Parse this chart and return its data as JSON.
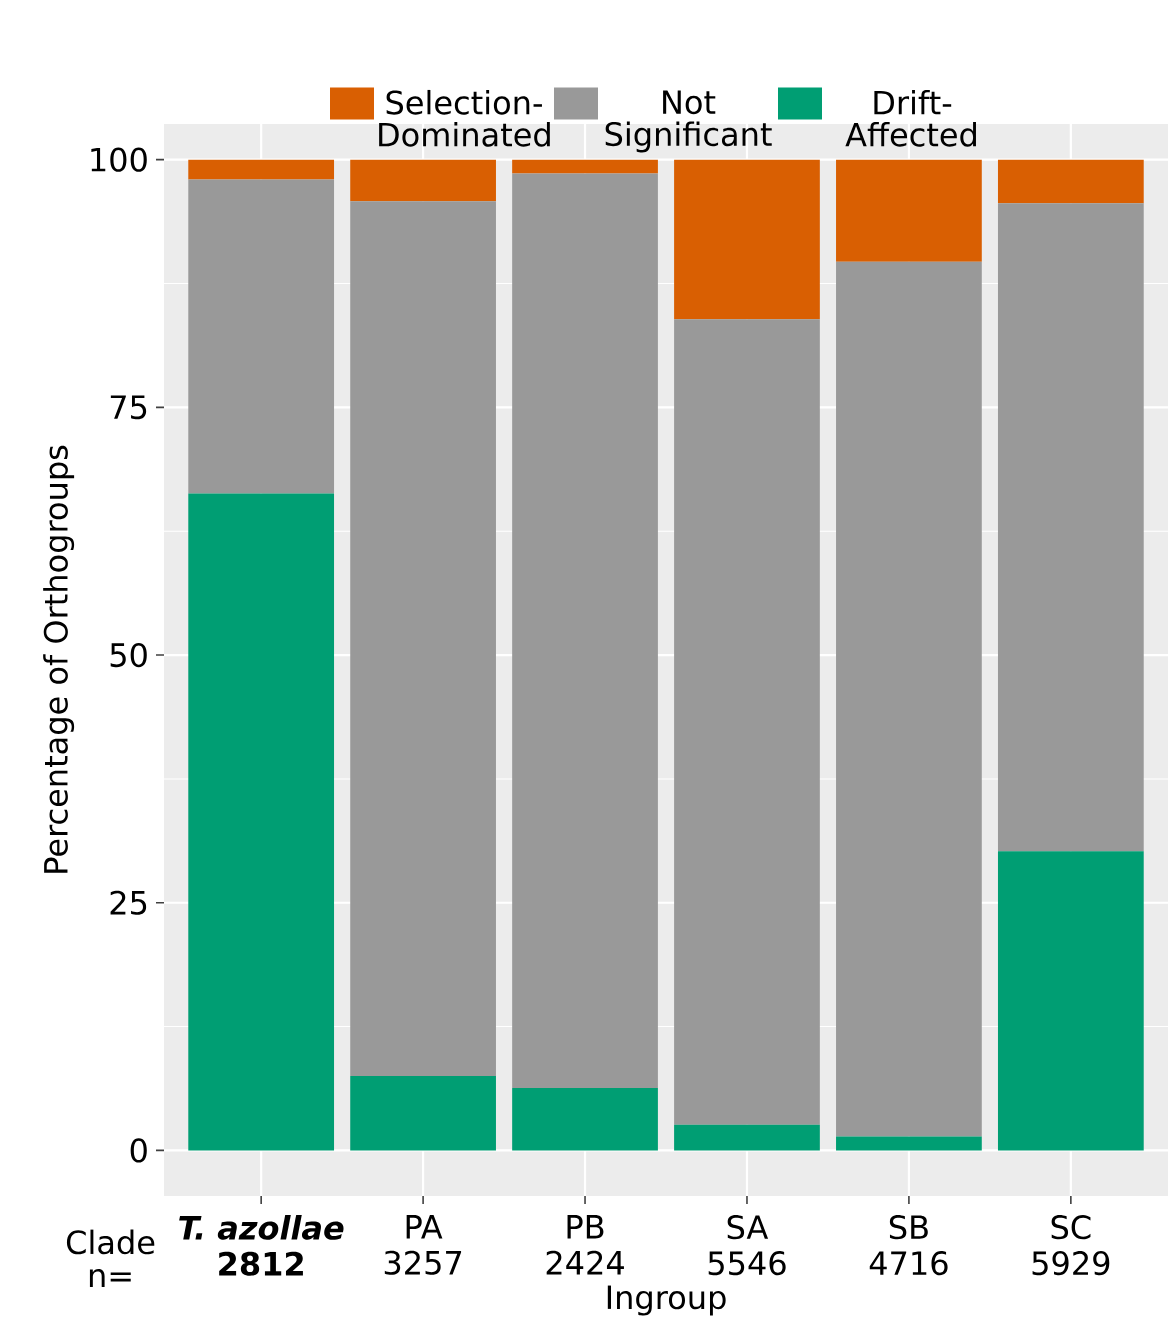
{
  "chart_data": {
    "type": "bar",
    "stacked": true,
    "xlabel": "Ingroup",
    "ylabel": "Percentage of Orthogroups",
    "categories": [
      "T. azollae",
      "PA",
      "PB",
      "SA",
      "SB",
      "SC"
    ],
    "series": [
      {
        "name": "Drift-Affected",
        "color": "#009e73",
        "values": [
          66.3,
          7.5,
          6.3,
          2.6,
          1.4,
          30.2
        ]
      },
      {
        "name": "Not Significant",
        "color": "#999999",
        "values": [
          31.7,
          88.3,
          92.3,
          81.3,
          88.3,
          65.4
        ]
      },
      {
        "name": "Selection-Dominated",
        "color": "#d95f02",
        "values": [
          2.0,
          4.2,
          1.4,
          16.1,
          10.3,
          4.4
        ]
      }
    ],
    "annotations": [
      "Clade",
      "n=",
      "2812",
      "3257",
      "2424",
      "5546",
      "4716",
      "5929"
    ],
    "ylim": [
      -4.6,
      103.6
    ],
    "yticks": [
      0,
      25,
      50,
      75,
      100
    ],
    "grid": true,
    "legend": "top"
  }
}
